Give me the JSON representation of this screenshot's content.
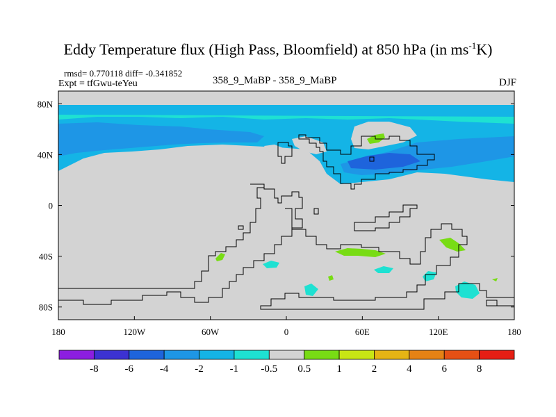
{
  "title": {
    "main": "Eddy Temperature flux (High Pass, Bloomfield) at 850 hPa (in ms",
    "superscript": "-1",
    "unit_tail": "K)"
  },
  "subtitle": {
    "stats": "rmsd= 0.770118 diff= -0.341852",
    "experiment": "Expt = tfGwu-teYeu",
    "comparison": "358_9_MaBP - 358_9_MaBP",
    "season": "DJF"
  },
  "map": {
    "projection": "cylindrical equidistant",
    "lon_range": [
      -180,
      180
    ],
    "lat_range": [
      -90,
      90
    ],
    "x_ticks": [
      {
        "value": -180,
        "label": "180"
      },
      {
        "value": -120,
        "label": "120W"
      },
      {
        "value": -60,
        "label": "60W"
      },
      {
        "value": 0,
        "label": "0"
      },
      {
        "value": 60,
        "label": "60E"
      },
      {
        "value": 120,
        "label": "120E"
      },
      {
        "value": 180,
        "label": "180"
      }
    ],
    "y_ticks": [
      {
        "value": 80,
        "label": "80N"
      },
      {
        "value": 40,
        "label": "40N"
      },
      {
        "value": 0,
        "label": "0"
      },
      {
        "value": -40,
        "label": "40S"
      },
      {
        "value": -80,
        "label": "80S"
      }
    ],
    "background_color": "#d3d3d3"
  },
  "colorbar": {
    "levels": [
      "-8",
      "-6",
      "-4",
      "-2",
      "-1",
      "-0.5",
      "0.5",
      "1",
      "2",
      "4",
      "6",
      "8"
    ],
    "colors": [
      "#8c1ee0",
      "#3c32d2",
      "#1e64dc",
      "#1e96e6",
      "#14b4e6",
      "#1ee1d2",
      "#d3d3d3",
      "#78dc14",
      "#c8e614",
      "#e6b414",
      "#e68214",
      "#e65014",
      "#e61e14"
    ]
  }
}
